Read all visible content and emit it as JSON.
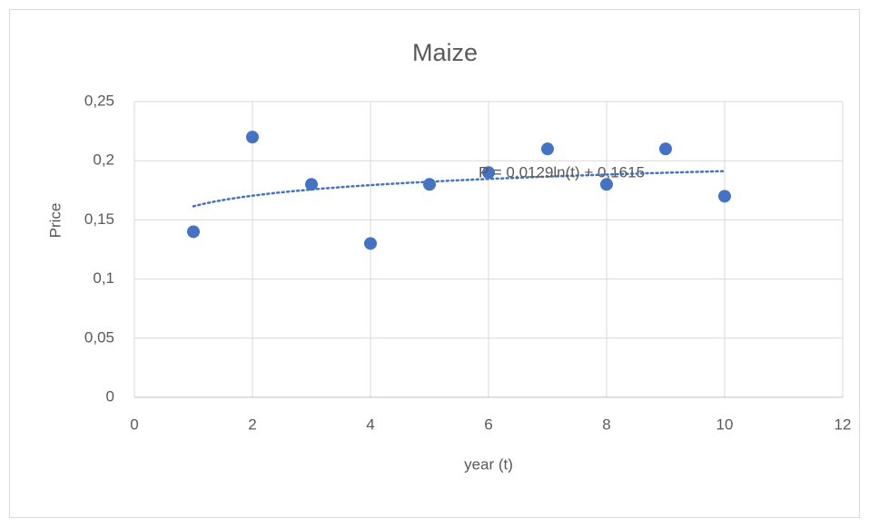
{
  "chart_data": {
    "type": "scatter",
    "title": "Maize",
    "x_label": "year (t)",
    "y_label": "Price",
    "series": [
      {
        "name": "Price",
        "color": "#4472c4",
        "x": [
          1,
          2,
          3,
          4,
          5,
          6,
          7,
          8,
          9,
          10
        ],
        "values": [
          0.14,
          0.22,
          0.18,
          0.13,
          0.18,
          0.19,
          0.21,
          0.18,
          0.21,
          0.17
        ]
      }
    ],
    "trendline": {
      "kind": "log",
      "a": 0.0129,
      "b": 0.1615,
      "color": "#4472c4",
      "equation": "P = 0,0129ln(t) + 0,1615"
    },
    "xlim": [
      0,
      12
    ],
    "xticks": [
      0,
      2,
      4,
      6,
      8,
      10,
      12
    ],
    "ylim": [
      0,
      0.25
    ],
    "yticks": [
      0,
      {
        "value": 0.05,
        "label": "0,05"
      },
      {
        "value": 0.1,
        "label": "0,1"
      },
      {
        "value": 0.15,
        "label": "0,15"
      },
      {
        "value": 0.2,
        "label": "0,2"
      },
      {
        "value": 0.25,
        "label": "0,25"
      }
    ],
    "grid": true
  }
}
